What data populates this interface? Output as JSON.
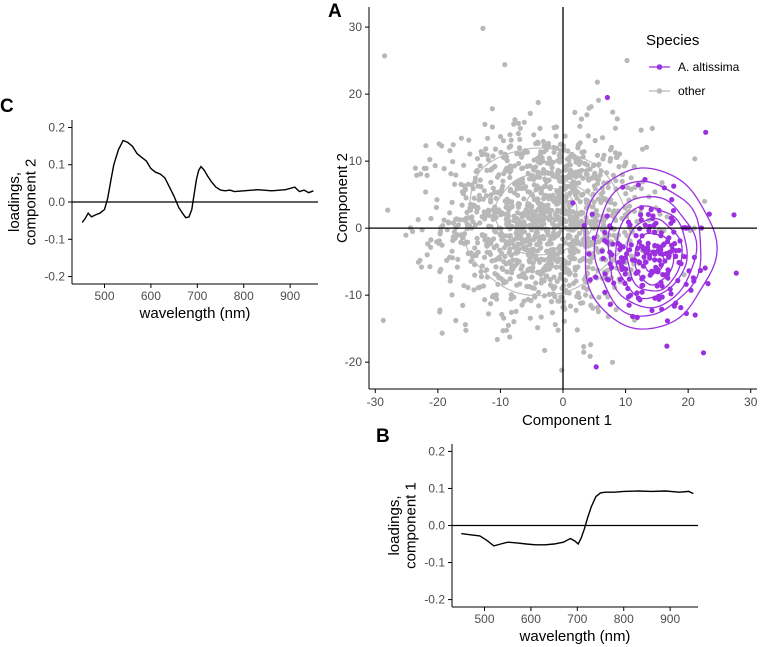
{
  "colors": {
    "altissima": "#9b30e0",
    "other": "#b8b8b8",
    "axis": "#000000"
  },
  "chart_data": [
    {
      "panel": "A",
      "type": "scatter",
      "xlabel": "Component 1",
      "ylabel": "Component 2",
      "xlim": [
        -31,
        31
      ],
      "ylim": [
        -24,
        33
      ],
      "xticks": [
        -30,
        -20,
        -10,
        0,
        10,
        20,
        30
      ],
      "yticks": [
        -20,
        -10,
        0,
        10,
        20,
        30
      ],
      "reference_lines": {
        "x": 0,
        "y": 0
      },
      "legend": {
        "title": "Species",
        "entries": [
          "A. altissima",
          "other"
        ],
        "position": "top-right"
      },
      "series": [
        {
          "name": "other",
          "n_points_approx": 1300,
          "distribution": {
            "mean": [
              -3,
              1
            ],
            "sd": [
              8,
              7
            ]
          },
          "notable_points": [
            [
              -28.5,
              25.7
            ],
            [
              -12.8,
              29.8
            ],
            [
              -9.3,
              24.4
            ],
            [
              -21.9,
              12.3
            ],
            [
              -0.2,
              -21.2
            ],
            [
              3.3,
              -18.5
            ],
            [
              5.5,
              21.8
            ]
          ],
          "contours": [
            {
              "center": [
                -3,
                1
              ],
              "radii": [
                13,
                11
              ]
            },
            {
              "center": [
                -3,
                2
              ],
              "radii": [
                8,
                6
              ]
            },
            {
              "center": [
                -2,
                3
              ],
              "radii": [
                4,
                3
              ]
            }
          ]
        },
        {
          "name": "A. altissima",
          "n_points_approx": 200,
          "distribution": {
            "mean": [
              14,
              -4
            ],
            "sd": [
              4.5,
              4.5
            ]
          },
          "notable_points": [
            [
              22.8,
              14.3
            ],
            [
              27.7,
              -6.7
            ],
            [
              5.3,
              -20.7
            ],
            [
              16.6,
              -17.6
            ],
            [
              7.1,
              19.5
            ]
          ],
          "contours": [
            {
              "center": [
                13.5,
                -3
              ],
              "radii": [
                10.5,
                12
              ]
            },
            {
              "center": [
                13.5,
                -3
              ],
              "radii": [
                8.5,
                10
              ]
            },
            {
              "center": [
                14,
                -3.5
              ],
              "radii": [
                7,
                8.3
              ]
            },
            {
              "center": [
                14,
                -3.5
              ],
              "radii": [
                5.7,
                6.8
              ]
            },
            {
              "center": [
                14.5,
                -4
              ],
              "radii": [
                4.4,
                5.4
              ]
            },
            {
              "center": [
                14.5,
                -4.5
              ],
              "radii": [
                3.1,
                3.8
              ]
            },
            {
              "center": [
                14.5,
                -5
              ],
              "radii": [
                1.6,
                1.6
              ]
            }
          ]
        }
      ]
    },
    {
      "panel": "B",
      "type": "line",
      "xlabel": "wavelength (nm)",
      "ylabel": "loadings,\ncomponent 1",
      "xlim": [
        430,
        960
      ],
      "ylim": [
        -0.22,
        0.22
      ],
      "xticks": [
        500,
        600,
        700,
        800,
        900
      ],
      "yticks": [
        -0.2,
        -0.1,
        0.0,
        0.1,
        0.2
      ],
      "ytick_labels": [
        "-0.2",
        "-0.1",
        "0.0",
        "0.1",
        "0.2"
      ],
      "reference_line_y": 0,
      "x": [
        450,
        470,
        490,
        505,
        520,
        535,
        550,
        570,
        590,
        610,
        630,
        650,
        670,
        685,
        695,
        702,
        708,
        715,
        722,
        730,
        740,
        750,
        760,
        780,
        800,
        830,
        860,
        890,
        920,
        940,
        950
      ],
      "y": [
        -0.022,
        -0.025,
        -0.028,
        -0.04,
        -0.055,
        -0.05,
        -0.045,
        -0.047,
        -0.05,
        -0.052,
        -0.052,
        -0.05,
        -0.045,
        -0.035,
        -0.042,
        -0.05,
        -0.035,
        -0.01,
        0.02,
        0.05,
        0.078,
        0.088,
        0.09,
        0.09,
        0.092,
        0.093,
        0.092,
        0.093,
        0.09,
        0.092,
        0.086
      ]
    },
    {
      "panel": "C",
      "type": "line",
      "xlabel": "wavelength (nm)",
      "ylabel": "loadings,\ncomponent 2",
      "xlim": [
        430,
        960
      ],
      "ylim": [
        -0.22,
        0.22
      ],
      "xticks": [
        500,
        600,
        700,
        800,
        900
      ],
      "yticks": [
        -0.2,
        -0.1,
        0.0,
        0.1,
        0.2
      ],
      "ytick_labels": [
        "-0.2",
        "-0.1",
        "0.0",
        "0.1",
        "0.2"
      ],
      "reference_line_y": 0,
      "x": [
        452,
        458,
        465,
        472,
        480,
        490,
        500,
        507,
        514,
        520,
        530,
        540,
        550,
        560,
        570,
        580,
        590,
        600,
        610,
        620,
        630,
        640,
        650,
        660,
        668,
        675,
        682,
        688,
        693,
        698,
        703,
        708,
        715,
        722,
        730,
        740,
        750,
        760,
        770,
        780,
        800,
        830,
        860,
        890,
        910,
        920,
        930,
        940,
        950
      ],
      "y": [
        -0.055,
        -0.045,
        -0.03,
        -0.04,
        -0.035,
        -0.03,
        -0.02,
        0.01,
        0.06,
        0.1,
        0.14,
        0.165,
        0.16,
        0.15,
        0.13,
        0.12,
        0.11,
        0.09,
        0.08,
        0.075,
        0.065,
        0.04,
        0.015,
        -0.015,
        -0.03,
        -0.042,
        -0.04,
        -0.02,
        0.02,
        0.06,
        0.085,
        0.095,
        0.085,
        0.07,
        0.055,
        0.04,
        0.032,
        0.03,
        0.032,
        0.028,
        0.03,
        0.033,
        0.03,
        0.033,
        0.04,
        0.028,
        0.032,
        0.025,
        0.03
      ]
    }
  ]
}
